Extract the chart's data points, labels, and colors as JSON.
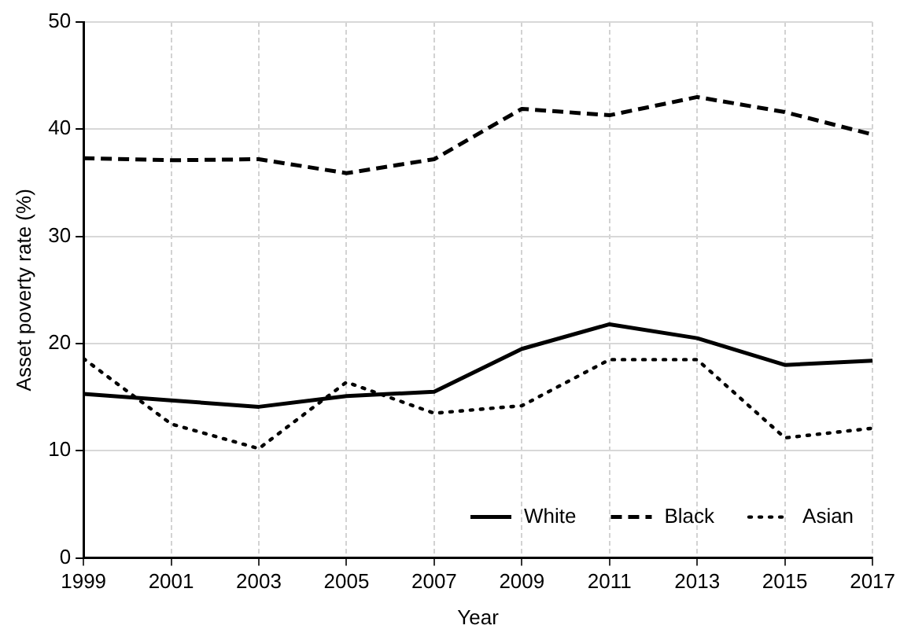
{
  "chart_data": {
    "type": "line",
    "xlabel": "Year",
    "ylabel": "Asset poverty rate (%)",
    "x": [
      1999,
      2001,
      2003,
      2005,
      2007,
      2009,
      2011,
      2013,
      2015,
      2017
    ],
    "xlim": [
      1999,
      2017
    ],
    "xticks": [
      1999,
      2001,
      2003,
      2005,
      2007,
      2009,
      2011,
      2013,
      2015,
      2017
    ],
    "ylim": [
      0,
      50
    ],
    "yticks": [
      0,
      10,
      20,
      30,
      40,
      50
    ],
    "grid": true,
    "legend": "bottom right",
    "marker": "none",
    "series": [
      {
        "name": "White",
        "color": "#000000",
        "line_style": "solid",
        "values": [
          15.3,
          14.7,
          14.1,
          15.1,
          15.5,
          19.5,
          21.8,
          20.5,
          18.0,
          18.4
        ]
      },
      {
        "name": "Black",
        "color": "#000000",
        "line_style": "dashed",
        "values": [
          37.3,
          37.1,
          37.2,
          35.9,
          37.2,
          41.9,
          41.3,
          43.0,
          41.6,
          39.5
        ]
      },
      {
        "name": "Asian",
        "color": "#000000",
        "line_style": "dotted",
        "values": [
          18.6,
          12.5,
          10.2,
          16.4,
          13.5,
          14.2,
          18.5,
          18.5,
          11.2,
          12.1
        ]
      }
    ]
  }
}
